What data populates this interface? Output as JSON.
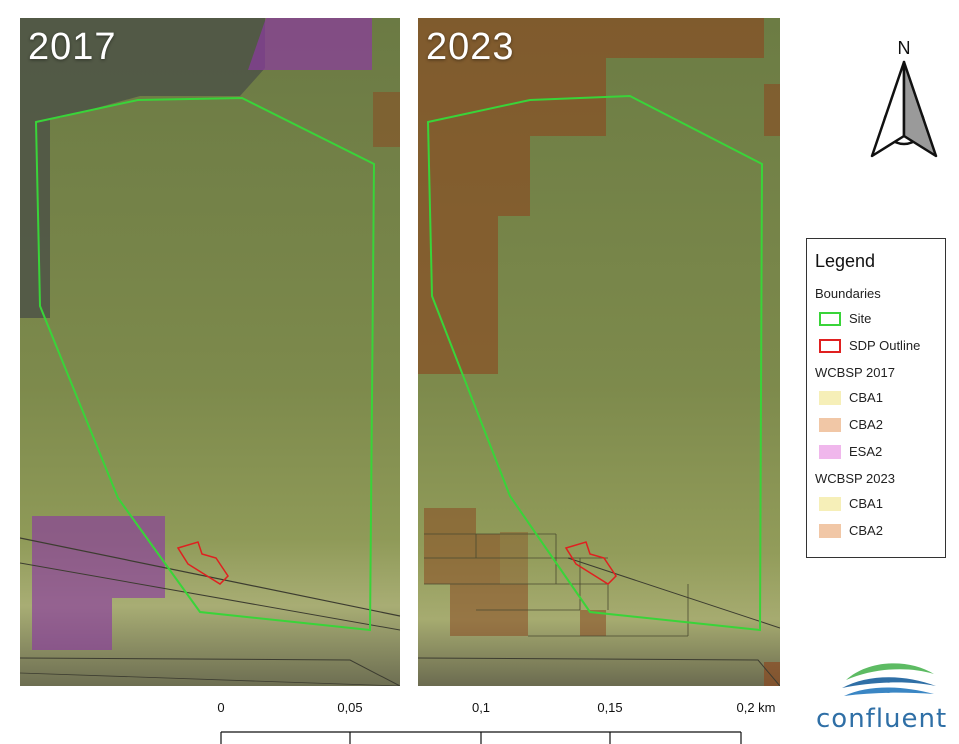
{
  "panels": [
    {
      "year_label": "2017"
    },
    {
      "year_label": "2023"
    }
  ],
  "north_arrow": {
    "letter": "N"
  },
  "legend": {
    "title": "Legend",
    "groups": [
      {
        "title": "Boundaries",
        "entries": [
          {
            "label": "Site",
            "fill": "#ffffff",
            "stroke": "#39d439"
          },
          {
            "label": "SDP Outline",
            "fill": "#ffffff",
            "stroke": "#e02020"
          }
        ]
      },
      {
        "title": "WCBSP 2017",
        "entries": [
          {
            "label": "CBA1",
            "fill": "#f6efb8",
            "stroke": "#f6efb8"
          },
          {
            "label": "CBA2",
            "fill": "#f1c7a6",
            "stroke": "#f1c7a6"
          },
          {
            "label": "ESA2",
            "fill": "#f0b7ec",
            "stroke": "#f0b7ec"
          }
        ]
      },
      {
        "title": "WCBSP 2023",
        "entries": [
          {
            "label": "CBA1",
            "fill": "#f6efb8",
            "stroke": "#f6efb8"
          },
          {
            "label": "CBA2",
            "fill": "#f1c7a6",
            "stroke": "#f1c7a6"
          }
        ]
      }
    ]
  },
  "scale_bar": {
    "labels": [
      "0",
      "0,05",
      "0,1",
      "0,15",
      "0,2 km"
    ]
  },
  "logo": {
    "text": "confluent"
  },
  "colors": {
    "site_boundary": "#39d439",
    "sdp_outline": "#e02020",
    "cba2_overlay": "#8a4a22",
    "esa2_overlay": "#8b3aa0"
  }
}
